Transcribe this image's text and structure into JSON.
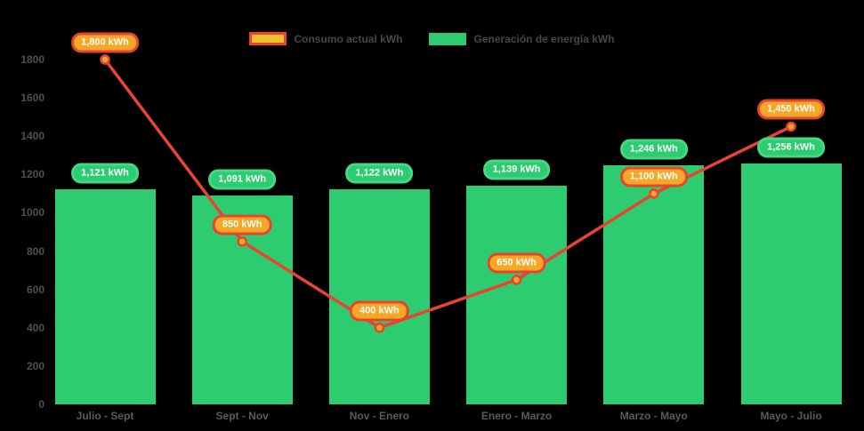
{
  "chart": {
    "background": "#000000",
    "legend": {
      "items": [
        {
          "label": "Consumo actual kWh",
          "swatch_fill": "#ecc22f",
          "swatch_border": "#e84430"
        },
        {
          "label": "Generación de energía kWh",
          "swatch_fill": "#2ecc71",
          "swatch_border": "#2ecc71"
        }
      ]
    }
  },
  "chart_data": {
    "type": "bar",
    "title": "",
    "xlabel": "",
    "ylabel": "",
    "categories": [
      "Julio - Sept",
      "Sept - Nov",
      "Nov - Enero",
      "Enero - Marzo",
      "Marzo - Mayo",
      "Mayo - Julio"
    ],
    "series": [
      {
        "name": "Generación de energía kWh",
        "type": "bar",
        "color": "#2ecc71",
        "label_fill": "#2ecc71",
        "label_border": "#44d985",
        "values": [
          1121,
          1091,
          1122,
          1139,
          1246,
          1256
        ],
        "labels": [
          "1,121 kWh",
          "1,091 kWh",
          "1,122 kWh",
          "1,139 kWh",
          "1,246 kWh",
          "1,256 kWh"
        ]
      },
      {
        "name": "Consumo actual kWh",
        "type": "line",
        "color": "#e84430",
        "marker_fill": "#f5a726",
        "label_fill": "#f5a726",
        "label_border": "#e84430",
        "values": [
          1800,
          850,
          400,
          650,
          1100,
          1450
        ],
        "labels": [
          "1,800 kWh",
          "850 kWh",
          "400 kWh",
          "650 kWh",
          "1,100 kWh",
          "1,450 kWh"
        ]
      }
    ],
    "ylim": [
      0,
      1800
    ],
    "yticks": [
      0,
      200,
      400,
      600,
      800,
      1000,
      1200,
      1400,
      1600,
      1800
    ],
    "grid": false,
    "legend_position": "top"
  }
}
